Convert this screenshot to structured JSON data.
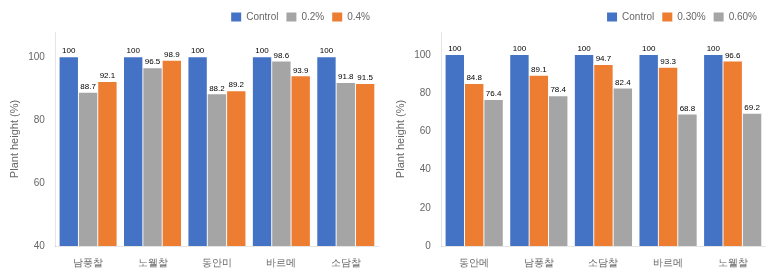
{
  "chart_data": [
    {
      "type": "bar",
      "categories": [
        "남풍찰",
        "노웰찰",
        "동안미",
        "바르메",
        "소담찰"
      ],
      "series": [
        {
          "name": "Control",
          "color": "#4472C4",
          "values": [
            100,
            100,
            100,
            100,
            100
          ]
        },
        {
          "name": "0.2%",
          "color": "#A5A5A5",
          "values": [
            88.7,
            96.5,
            88.2,
            98.6,
            91.8
          ]
        },
        {
          "name": "0.4%",
          "color": "#ED7D31",
          "values": [
            92.1,
            98.9,
            89.2,
            93.9,
            91.5
          ]
        }
      ],
      "y_label": "Plant height (%)",
      "ylim": [
        40,
        108
      ],
      "yticks": [
        40,
        60,
        80,
        100
      ],
      "grid": false,
      "legend": "upper right",
      "data_labels": true
    },
    {
      "type": "bar",
      "categories": [
        "동안메",
        "남풍찰",
        "소담찰",
        "바르메",
        "노웰찰"
      ],
      "series": [
        {
          "name": "Control",
          "color": "#4472C4",
          "values": [
            100,
            100,
            100,
            100,
            100
          ]
        },
        {
          "name": "0.30%",
          "color": "#ED7D31",
          "values": [
            84.8,
            89.1,
            94.7,
            93.3,
            96.6
          ]
        },
        {
          "name": "0.60%",
          "color": "#A5A5A5",
          "values": [
            76.4,
            78.4,
            82.4,
            68.8,
            69.2
          ]
        }
      ],
      "y_label": "Plant height (%)",
      "ylim": [
        0,
        112
      ],
      "yticks": [
        0,
        20,
        40,
        60,
        80,
        100
      ],
      "grid": false,
      "legend": "upper right",
      "data_labels": true
    }
  ]
}
